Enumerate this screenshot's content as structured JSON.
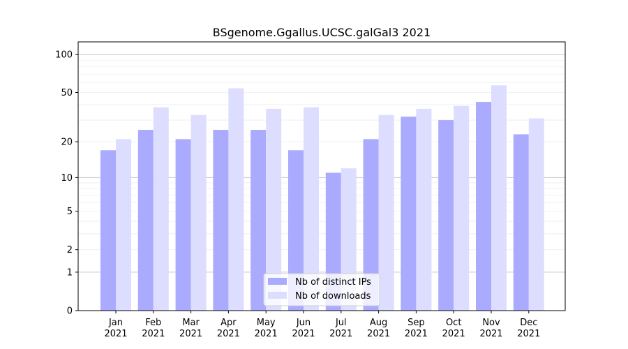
{
  "chart_data": {
    "type": "bar",
    "title": "BSgenome.Ggallus.UCSC.galGal3 2021",
    "xlabel": "",
    "ylabel": "",
    "yscale": "log(1+y)",
    "ylim": [
      0,
      126
    ],
    "yticks": [
      0,
      1,
      2,
      5,
      10,
      20,
      50,
      100
    ],
    "grid": true,
    "legend": "bottom-center",
    "categories": [
      [
        "Jan",
        "2021"
      ],
      [
        "Feb",
        "2021"
      ],
      [
        "Mar",
        "2021"
      ],
      [
        "Apr",
        "2021"
      ],
      [
        "May",
        "2021"
      ],
      [
        "Jun",
        "2021"
      ],
      [
        "Jul",
        "2021"
      ],
      [
        "Aug",
        "2021"
      ],
      [
        "Sep",
        "2021"
      ],
      [
        "Oct",
        "2021"
      ],
      [
        "Nov",
        "2021"
      ],
      [
        "Dec",
        "2021"
      ]
    ],
    "series": [
      {
        "name": "Nb of distinct IPs",
        "color": "#aaaaff",
        "values": [
          17,
          25,
          21,
          25,
          25,
          17,
          11,
          21,
          32,
          30,
          42,
          23
        ]
      },
      {
        "name": "Nb of downloads",
        "color": "#ddddff",
        "values": [
          21,
          38,
          33,
          54,
          37,
          38,
          12,
          33,
          37,
          39,
          57,
          31
        ]
      }
    ]
  }
}
